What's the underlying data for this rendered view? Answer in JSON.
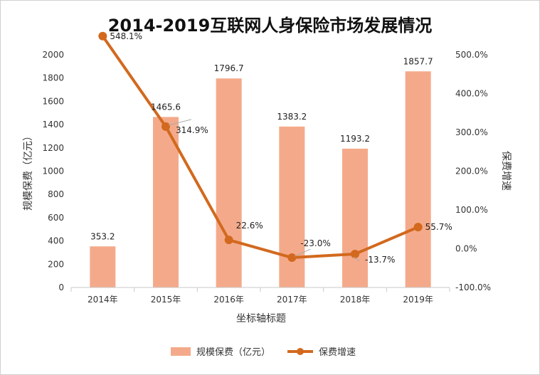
{
  "chart_data": {
    "type": "bar",
    "title": "2014-2019互联网人身保险市场发展情况",
    "categories": [
      "2014年",
      "2015年",
      "2016年",
      "2017年",
      "2018年",
      "2019年"
    ],
    "xlabel": "坐标轴标题",
    "ylabel": "规模保费（亿元）",
    "y2label": "保费增速",
    "ylim": [
      0,
      2000
    ],
    "yticks": [
      "2000",
      "1800",
      "1600",
      "1400",
      "1200",
      "1000",
      "800",
      "600",
      "400",
      "200",
      "0"
    ],
    "y2lim": [
      -100,
      500
    ],
    "y2ticks": [
      "500.0%",
      "400.0%",
      "300.0%",
      "200.0%",
      "100.0%",
      "0.0%",
      "-100.0%"
    ],
    "series": [
      {
        "name": "规模保费（亿元）",
        "type": "bar",
        "axis": "left",
        "values": [
          353.2,
          1465.6,
          1796.7,
          1383.2,
          1193.2,
          1857.7
        ],
        "labels": [
          "353.2",
          "1465.6",
          "1796.7",
          "1383.2",
          "1193.2",
          "1857.7"
        ],
        "color": "#f4aa8a"
      },
      {
        "name": "保费增速",
        "type": "line",
        "axis": "right",
        "values": [
          548.1,
          314.9,
          22.6,
          -23.0,
          -13.7,
          55.7
        ],
        "labels": [
          "548.1%",
          "314.9%",
          "22.6%",
          "-23.0%",
          "-13.7%",
          "55.7%"
        ],
        "color": "#d2691e"
      }
    ],
    "legend": "bottom",
    "grid": false
  }
}
